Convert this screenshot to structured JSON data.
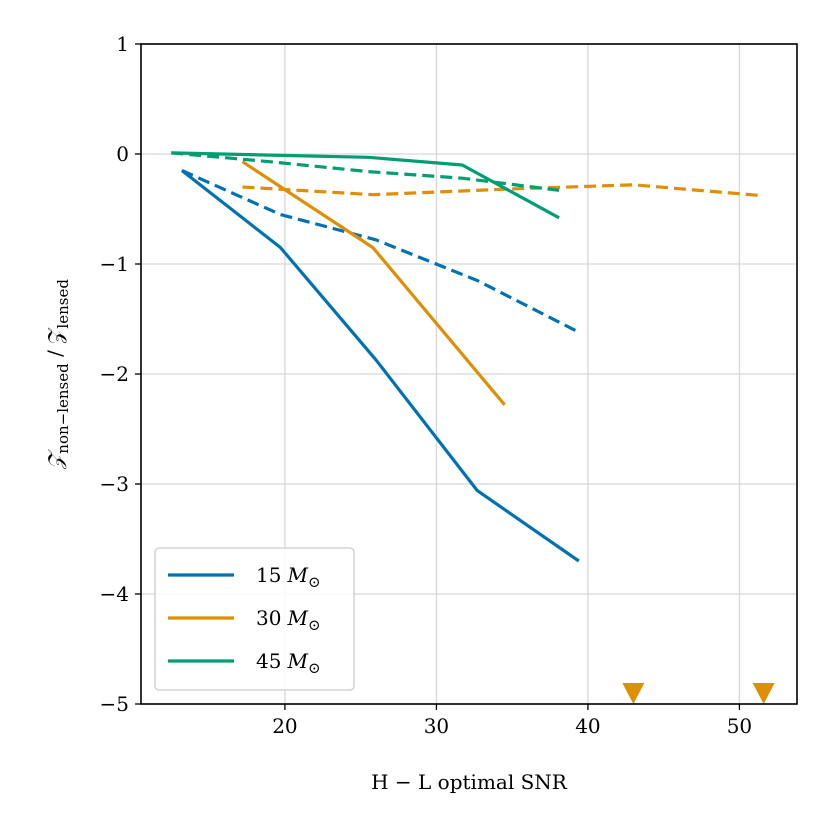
{
  "chart_data": {
    "type": "line",
    "title": "",
    "xlabel": "H − L optimal SNR",
    "ylabel_main": "𝒵",
    "ylabel_sub1": "non−lensed",
    "ylabel_sep": " / 𝒵",
    "ylabel_sub2": "lensed",
    "xlim": [
      10.5,
      53.8
    ],
    "ylim": [
      -5,
      1
    ],
    "xticks": [
      20,
      30,
      40,
      50
    ],
    "yticks": [
      1,
      0,
      -1,
      -2,
      -3,
      -4,
      -5
    ],
    "xtick_labels": [
      "20",
      "30",
      "40",
      "50"
    ],
    "ytick_labels": [
      "1",
      "0",
      "−1",
      "−2",
      "−3",
      "−4",
      "−5"
    ],
    "grid": true,
    "legend_position": "lower-left",
    "series": [
      {
        "name": "15 M_sun solid",
        "color": "#0072b2",
        "style": "solid",
        "x": [
          13.2,
          19.7,
          26.0,
          32.7,
          39.4
        ],
        "y": [
          -0.15,
          -0.85,
          -1.87,
          -3.06,
          -3.7
        ]
      },
      {
        "name": "15 M_sun dashed",
        "color": "#0072b2",
        "style": "dashed",
        "x": [
          13.2,
          19.7,
          26.0,
          32.7,
          39.4
        ],
        "y": [
          -0.15,
          -0.55,
          -0.78,
          -1.15,
          -1.62
        ]
      },
      {
        "name": "30 M_sun solid",
        "color": "#de8f05",
        "style": "solid",
        "x": [
          17.2,
          25.8,
          34.5
        ],
        "y": [
          -0.07,
          -0.85,
          -2.28
        ]
      },
      {
        "name": "30 M_sun dashed",
        "color": "#de8f05",
        "style": "dashed",
        "x": [
          17.2,
          25.8,
          34.5,
          43.0,
          51.6
        ],
        "y": [
          -0.3,
          -0.37,
          -0.32,
          -0.28,
          -0.38
        ]
      },
      {
        "name": "45 M_sun solid",
        "color": "#029e73",
        "style": "solid",
        "x": [
          12.5,
          19.0,
          25.5,
          31.7,
          38.1
        ],
        "y": [
          0.01,
          -0.01,
          -0.03,
          -0.1,
          -0.58
        ]
      },
      {
        "name": "45 M_sun dashed",
        "color": "#029e73",
        "style": "dashed",
        "x": [
          12.5,
          19.0,
          25.5,
          31.7,
          38.1
        ],
        "y": [
          0.01,
          -0.07,
          -0.16,
          -0.22,
          -0.33
        ]
      }
    ],
    "markers": [
      {
        "name": "upper-limit-triangle",
        "color": "#de8f05",
        "x": 43.0,
        "y": -4.9
      },
      {
        "name": "upper-limit-triangle",
        "color": "#de8f05",
        "x": 51.6,
        "y": -4.9
      }
    ],
    "legend": [
      {
        "value": "15",
        "unit_symbol": "M",
        "unit_sub": "⊙",
        "color": "#0072b2"
      },
      {
        "value": "30",
        "unit_symbol": "M",
        "unit_sub": "⊙",
        "color": "#de8f05"
      },
      {
        "value": "45",
        "unit_symbol": "M",
        "unit_sub": "⊙",
        "color": "#029e73"
      }
    ]
  }
}
